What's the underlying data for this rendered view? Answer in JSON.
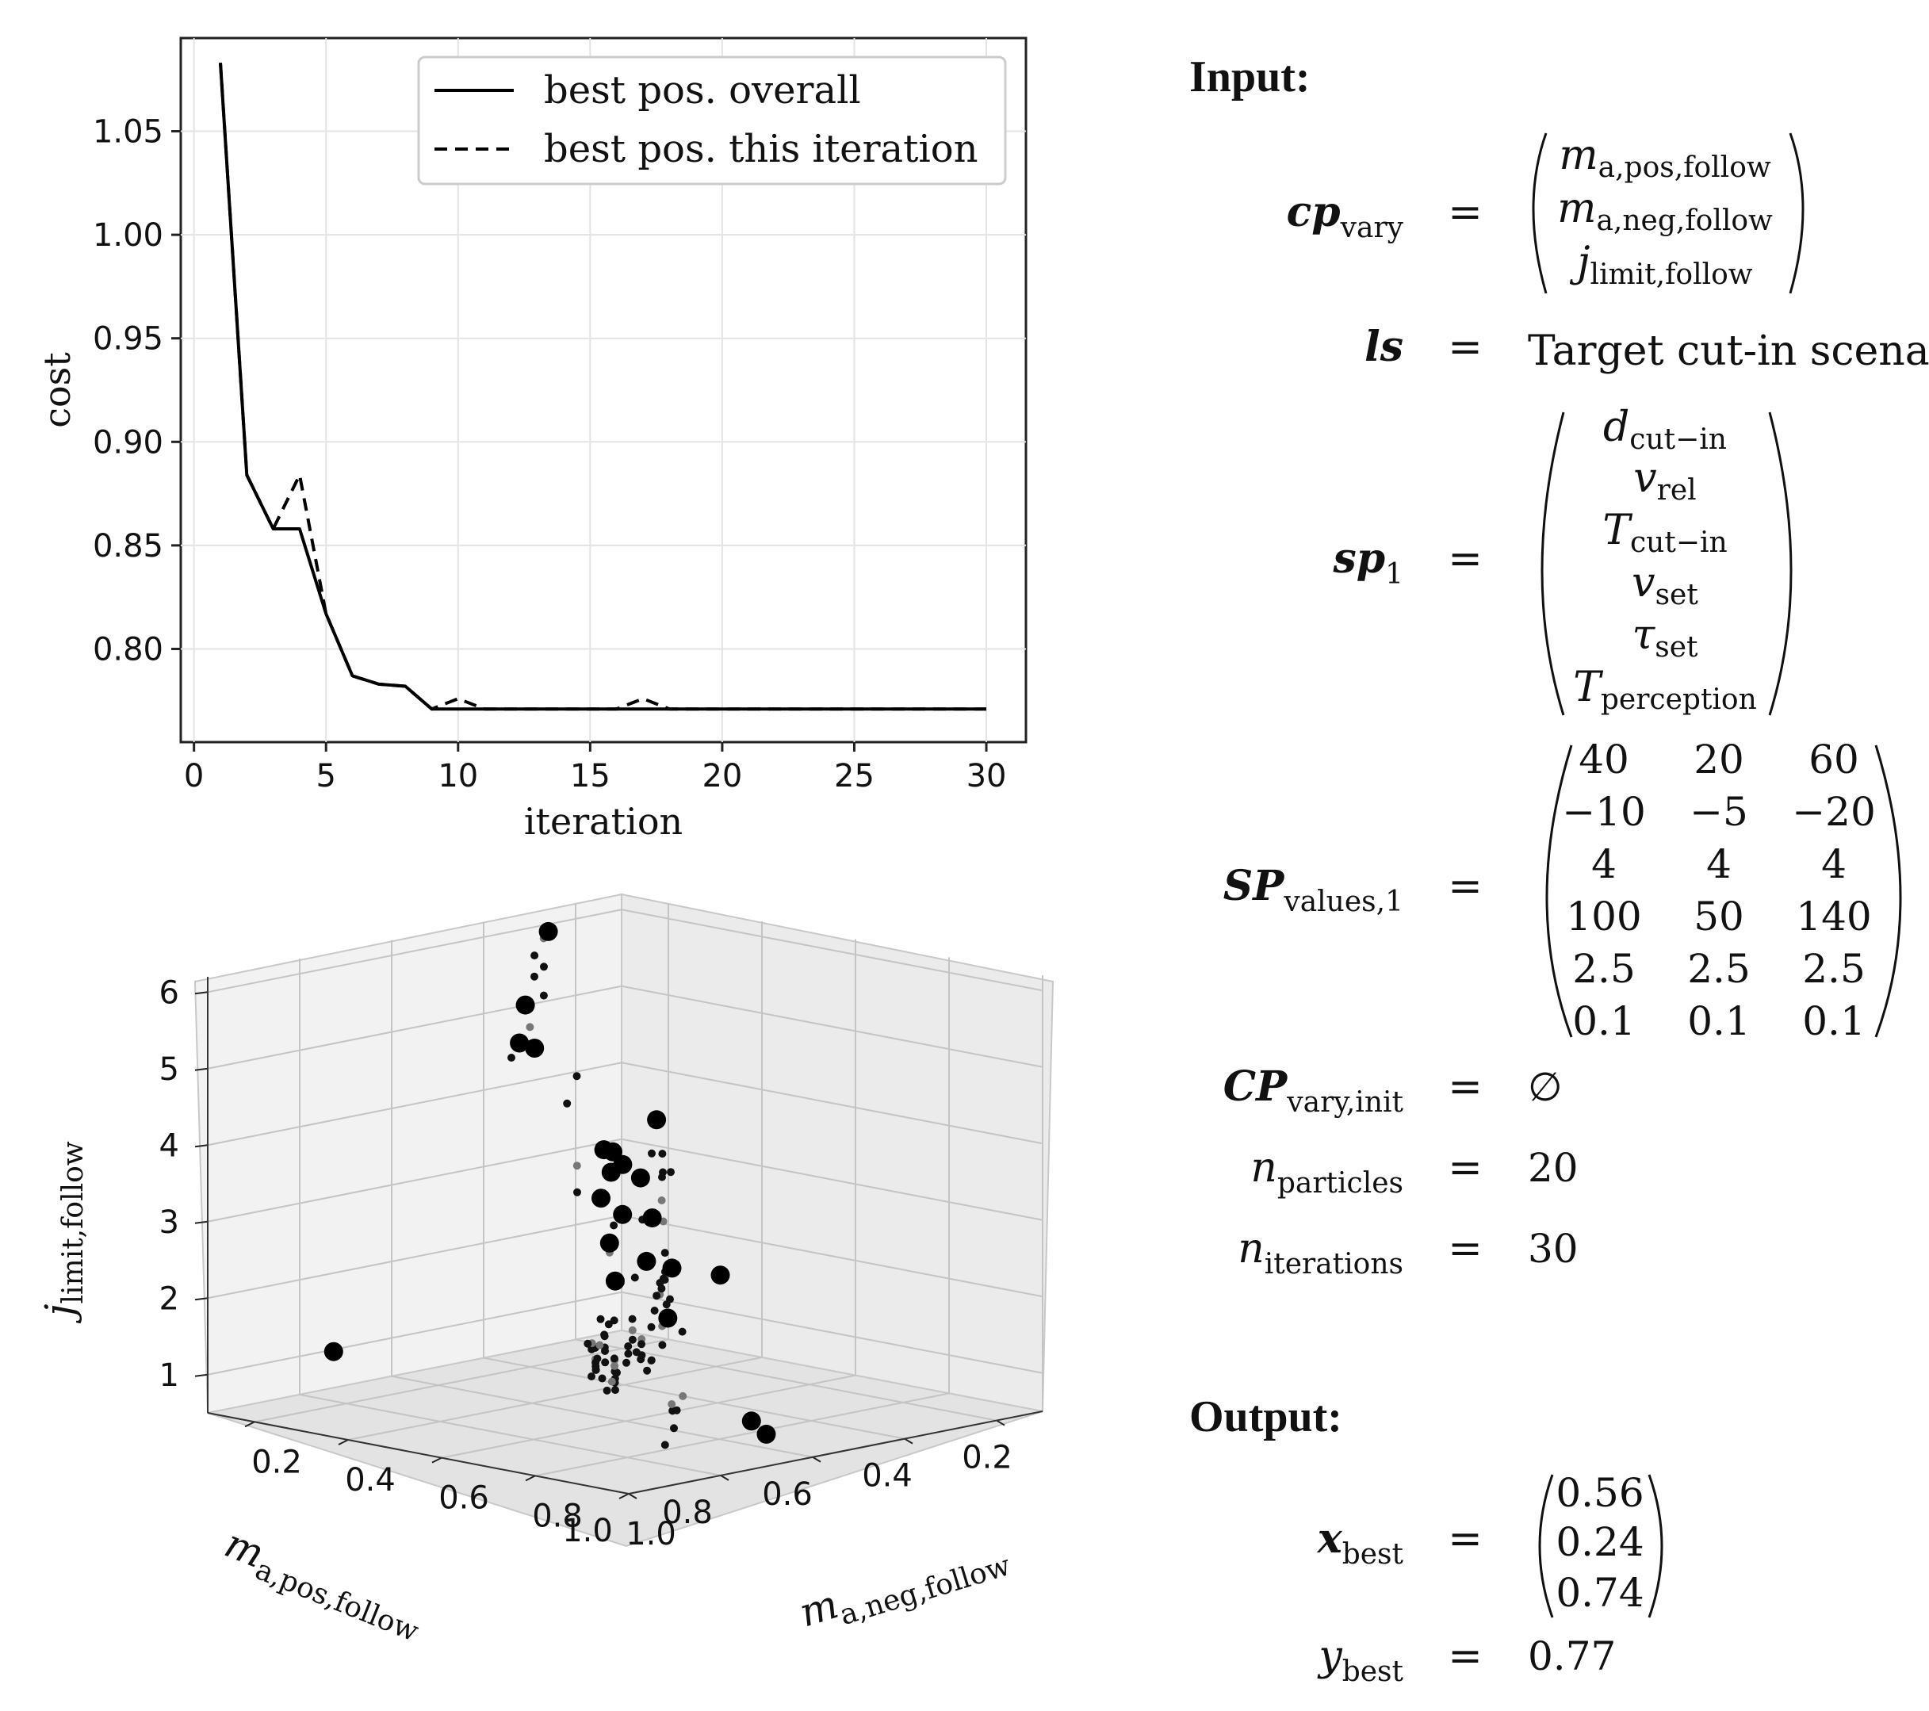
{
  "chart_data": [
    {
      "type": "line",
      "xlabel": "iteration",
      "ylabel": "cost",
      "xlim": [
        -0.5,
        31.5
      ],
      "ylim": [
        0.755,
        1.095
      ],
      "xticks": [
        0,
        5,
        10,
        15,
        20,
        25,
        30
      ],
      "yticks": [
        0.8,
        0.85,
        0.9,
        0.95,
        1.0,
        1.05
      ],
      "ytick_labels": [
        "0.80",
        "0.85",
        "0.90",
        "0.95",
        "1.00",
        "1.05"
      ],
      "grid": true,
      "legend_position": "top-right",
      "series": [
        {
          "name": "best pos. overall",
          "style": "solid",
          "x": [
            1,
            2,
            3,
            4,
            5,
            6,
            7,
            8,
            9,
            10,
            11,
            12,
            13,
            14,
            15,
            16,
            17,
            18,
            19,
            20,
            21,
            22,
            23,
            24,
            25,
            26,
            27,
            28,
            29,
            30
          ],
          "y": [
            1.083,
            0.884,
            0.858,
            0.858,
            0.817,
            0.787,
            0.783,
            0.782,
            0.771,
            0.771,
            0.771,
            0.771,
            0.771,
            0.771,
            0.771,
            0.771,
            0.771,
            0.771,
            0.771,
            0.771,
            0.771,
            0.771,
            0.771,
            0.771,
            0.771,
            0.771,
            0.771,
            0.771,
            0.771,
            0.771
          ]
        },
        {
          "name": "best pos. this iteration",
          "style": "dashed",
          "x": [
            1,
            2,
            3,
            4,
            5,
            6,
            7,
            8,
            9,
            10,
            11,
            12,
            13,
            14,
            15,
            16,
            17,
            18,
            19,
            20,
            21,
            22,
            23,
            24,
            25,
            26,
            27,
            28,
            29,
            30
          ],
          "y": [
            1.083,
            0.884,
            0.858,
            0.884,
            0.817,
            0.787,
            0.783,
            0.782,
            0.771,
            0.776,
            0.771,
            0.771,
            0.771,
            0.771,
            0.771,
            0.771,
            0.776,
            0.771,
            0.771,
            0.771,
            0.771,
            0.771,
            0.771,
            0.771,
            0.771,
            0.771,
            0.771,
            0.771,
            0.771,
            0.771
          ]
        }
      ]
    },
    {
      "type": "scatter",
      "projection": "3d",
      "xlabel_main": "m",
      "xlabel_sub": "a,pos,follow",
      "ylabel_main": "m",
      "ylabel_sub": "a,neg,follow",
      "zlabel_main": "j",
      "zlabel_sub": "limit,follow",
      "xlim": [
        0.1,
        1.0
      ],
      "ylim": [
        0.1,
        1.0
      ],
      "zlim": [
        0.5,
        6.2
      ],
      "xticks": [
        1.0,
        0.8,
        0.6,
        0.4,
        0.2
      ],
      "xtick_labels": [
        "1.0",
        "0.8",
        "0.6",
        "0.4",
        "0.2"
      ],
      "yticks": [
        0.2,
        0.4,
        0.6,
        0.8,
        1.0
      ],
      "ytick_labels": [
        "0.2",
        "0.4",
        "0.6",
        "0.8",
        "1.0"
      ],
      "zticks": [
        1,
        2,
        3,
        4,
        5,
        6
      ],
      "zmax": 6.2,
      "highlight_points": [
        [
          0.95,
          0.32,
          1.5
        ],
        [
          0.3,
          0.14,
          6.0
        ],
        [
          0.35,
          0.14,
          5.1
        ],
        [
          0.78,
          0.55,
          5.6
        ],
        [
          0.92,
          0.72,
          5.9
        ],
        [
          0.72,
          0.75,
          4.0
        ],
        [
          0.38,
          0.45,
          4.0
        ],
        [
          0.55,
          0.52,
          3.6
        ],
        [
          0.88,
          0.92,
          3.3
        ],
        [
          0.45,
          0.4,
          3.0
        ],
        [
          0.75,
          0.95,
          3.0
        ],
        [
          0.22,
          0.18,
          3.1
        ],
        [
          0.18,
          0.16,
          3.0
        ],
        [
          0.24,
          0.24,
          3.0
        ],
        [
          0.35,
          0.32,
          2.2
        ],
        [
          0.42,
          0.48,
          2.8
        ],
        [
          0.55,
          0.65,
          2.5
        ],
        [
          0.62,
          0.71,
          2.0
        ],
        [
          0.47,
          0.45,
          2.0
        ],
        [
          0.22,
          0.22,
          2.3
        ],
        [
          0.55,
          0.82,
          0.7
        ],
        [
          0.65,
          0.95,
          0.8
        ]
      ],
      "particle_points": [
        [
          0.3,
          0.13,
          5.9
        ],
        [
          0.32,
          0.13,
          5.7
        ],
        [
          0.33,
          0.16,
          5.6
        ],
        [
          0.31,
          0.12,
          5.4
        ],
        [
          0.32,
          0.15,
          5.2
        ],
        [
          0.34,
          0.14,
          4.8
        ],
        [
          0.35,
          0.15,
          4.6
        ],
        [
          0.36,
          0.12,
          4.4
        ],
        [
          0.3,
          0.18,
          3.8
        ],
        [
          0.35,
          0.25,
          4.3
        ],
        [
          0.38,
          0.28,
          3.2
        ],
        [
          0.4,
          0.3,
          2.9
        ],
        [
          0.33,
          0.29,
          2.7
        ],
        [
          0.31,
          0.3,
          2.5
        ],
        [
          0.29,
          0.27,
          2.3
        ],
        [
          0.36,
          0.33,
          2.1
        ],
        [
          0.26,
          0.35,
          2.0
        ],
        [
          0.28,
          0.37,
          1.8
        ],
        [
          0.24,
          0.33,
          1.6
        ],
        [
          0.22,
          0.3,
          1.5
        ],
        [
          0.2,
          0.28,
          1.3
        ],
        [
          0.3,
          0.4,
          1.5
        ],
        [
          0.38,
          0.45,
          1.7
        ],
        [
          0.42,
          0.5,
          1.9
        ],
        [
          0.46,
          0.55,
          1.8
        ],
        [
          0.5,
          0.58,
          1.6
        ],
        [
          0.52,
          0.6,
          1.4
        ],
        [
          0.4,
          0.35,
          1.3
        ],
        [
          0.35,
          0.33,
          1.2
        ],
        [
          0.28,
          0.3,
          1.1
        ],
        [
          0.3,
          0.32,
          1.0
        ],
        [
          0.32,
          0.28,
          0.9
        ],
        [
          0.34,
          0.3,
          0.8
        ],
        [
          0.36,
          0.32,
          0.8
        ],
        [
          0.38,
          0.34,
          0.7
        ],
        [
          0.4,
          0.38,
          0.8
        ],
        [
          0.42,
          0.4,
          0.7
        ],
        [
          0.44,
          0.42,
          0.6
        ],
        [
          0.46,
          0.44,
          0.7
        ],
        [
          0.48,
          0.46,
          0.6
        ],
        [
          0.33,
          0.27,
          0.6
        ],
        [
          0.35,
          0.29,
          0.6
        ],
        [
          0.37,
          0.31,
          0.6
        ],
        [
          0.39,
          0.33,
          0.6
        ],
        [
          0.31,
          0.25,
          0.7
        ],
        [
          0.29,
          0.24,
          0.7
        ],
        [
          0.27,
          0.23,
          0.8
        ],
        [
          0.25,
          0.22,
          0.9
        ],
        [
          0.45,
          0.38,
          1.0
        ],
        [
          0.48,
          0.41,
          1.1
        ],
        [
          0.5,
          0.43,
          1.2
        ],
        [
          0.55,
          0.47,
          1.3
        ],
        [
          0.58,
          0.52,
          1.2
        ],
        [
          0.6,
          0.55,
          1.0
        ],
        [
          0.62,
          0.58,
          0.9
        ],
        [
          0.65,
          0.62,
          1.1
        ],
        [
          0.68,
          0.66,
          1.3
        ],
        [
          0.7,
          0.7,
          1.5
        ],
        [
          0.75,
          0.78,
          1.7
        ],
        [
          0.8,
          0.82,
          1.9
        ],
        [
          0.85,
          0.88,
          2.2
        ],
        [
          0.9,
          0.95,
          2.5
        ],
        [
          0.95,
          0.98,
          4.0
        ],
        [
          0.72,
          0.78,
          2.3
        ],
        [
          0.66,
          0.74,
          2.6
        ],
        [
          0.64,
          0.72,
          3.3
        ],
        [
          0.58,
          0.66,
          3.8
        ],
        [
          0.52,
          0.6,
          3.9
        ],
        [
          0.48,
          0.56,
          3.5
        ],
        [
          0.4,
          0.5,
          3.4
        ],
        [
          0.44,
          0.52,
          3.1
        ],
        [
          0.36,
          0.42,
          3.5
        ],
        [
          0.56,
          0.55,
          2.2
        ],
        [
          0.6,
          0.62,
          2.4
        ],
        [
          0.68,
          0.8,
          2.0
        ],
        [
          0.74,
          0.86,
          1.3
        ],
        [
          0.8,
          0.9,
          1.0
        ],
        [
          0.86,
          0.94,
          0.9
        ],
        [
          0.62,
          0.72,
          0.8
        ],
        [
          0.57,
          0.68,
          0.7
        ],
        [
          0.52,
          0.62,
          0.65
        ],
        [
          0.28,
          0.32,
          0.65
        ],
        [
          0.26,
          0.3,
          0.6
        ],
        [
          0.24,
          0.28,
          0.7
        ],
        [
          0.3,
          0.36,
          0.65
        ],
        [
          0.32,
          0.38,
          0.7
        ],
        [
          0.34,
          0.4,
          0.75
        ],
        [
          0.36,
          0.41,
          0.65
        ],
        [
          0.43,
          0.36,
          0.6
        ],
        [
          0.41,
          0.35,
          0.65
        ],
        [
          0.39,
          0.37,
          0.7
        ],
        [
          0.37,
          0.35,
          0.75
        ],
        [
          0.35,
          0.36,
          0.8
        ],
        [
          0.33,
          0.34,
          0.85
        ],
        [
          0.31,
          0.33,
          0.9
        ]
      ]
    }
  ],
  "formulas": {
    "input_heading": "Input:",
    "output_heading": "Output:",
    "equals": "=",
    "cp_vary": {
      "main": "cp",
      "sub": "vary",
      "vector": [
        {
          "main": "m",
          "sub": "a,pos,follow"
        },
        {
          "main": "m",
          "sub": "a,neg,follow"
        },
        {
          "main": "j",
          "sub": "limit,follow"
        }
      ]
    },
    "ls": {
      "main": "ls",
      "value": "Target cut-in scenario"
    },
    "sp1": {
      "main": "sp",
      "sub": "1",
      "vector": [
        {
          "main": "d",
          "sub": "cut−in"
        },
        {
          "main": "v",
          "sub": "rel"
        },
        {
          "main": "T",
          "sub": "cut−in"
        },
        {
          "main": "v",
          "sub": "set"
        },
        {
          "main": "τ",
          "sub": "set"
        },
        {
          "main": "T",
          "sub": "perception"
        }
      ]
    },
    "SP_values": {
      "main": "SP",
      "sub": "values,1",
      "matrix": [
        [
          "40",
          "20",
          "60"
        ],
        [
          "−10",
          "−5",
          "−20"
        ],
        [
          "4",
          "4",
          "4"
        ],
        [
          "100",
          "50",
          "140"
        ],
        [
          "2.5",
          "2.5",
          "2.5"
        ],
        [
          "0.1",
          "0.1",
          "0.1"
        ]
      ]
    },
    "CP_init": {
      "main": "CP",
      "sub": "vary,init",
      "value": "∅"
    },
    "n_particles": {
      "main": "n",
      "sub": "particles",
      "value": "20"
    },
    "n_iterations": {
      "main": "n",
      "sub": "iterations",
      "value": "30"
    },
    "x_best": {
      "main": "x",
      "sub": "best",
      "vector": [
        "0.56",
        "0.24",
        "0.74"
      ]
    },
    "y_best": {
      "main": "y",
      "sub": "best",
      "value": "0.77"
    }
  }
}
